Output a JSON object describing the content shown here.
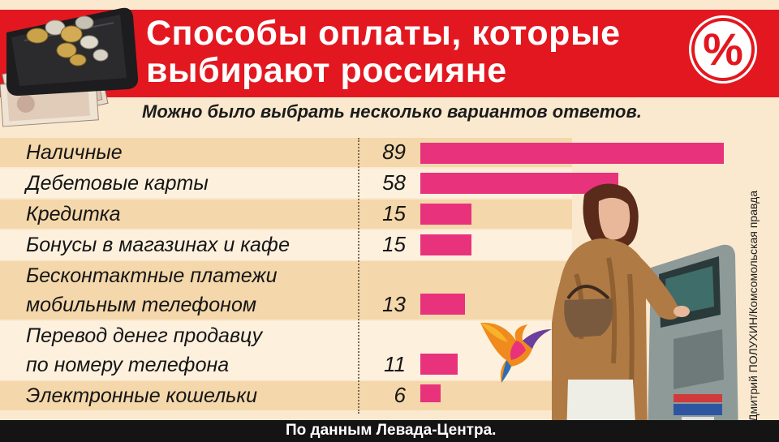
{
  "header": {
    "title_line1": "Способы оплаты, которые",
    "title_line2": "выбирают россияне",
    "badge_symbol": "%",
    "accent_color": "#e3171f"
  },
  "subtitle": "Можно было выбрать несколько вариантов ответов.",
  "chart_data": {
    "type": "bar",
    "orientation": "horizontal",
    "title": "Способы оплаты, которые выбирают россияне",
    "subtitle": "Можно было выбрать несколько вариантов ответов.",
    "bar_color": "#e8337c",
    "grid": false,
    "xlim": [
      0,
      89
    ],
    "rows": [
      {
        "lines": [
          "Наличные"
        ],
        "value": 89,
        "value_label": "89"
      },
      {
        "lines": [
          "Дебетовые карты"
        ],
        "value": 58,
        "value_label": "58"
      },
      {
        "lines": [
          "Кредитка"
        ],
        "value": 15,
        "value_label": "15"
      },
      {
        "lines": [
          "Бонусы в магазинах и кафе"
        ],
        "value": 15,
        "value_label": "15"
      },
      {
        "lines": [
          "Бесконтактные платежи",
          "мобильным телефоном"
        ],
        "value": 13,
        "value_label": "13"
      },
      {
        "lines": [
          "Перевод денег продавцу",
          "по номеру телефона"
        ],
        "value": 11,
        "value_label": "11"
      },
      {
        "lines": [
          "Электронные кошельки"
        ],
        "value": 6,
        "value_label": "6"
      }
    ]
  },
  "photo_credit": "Дмитрий ПОЛУХИН/Комсомольская правда",
  "source": "По данным Левада-Центра.",
  "icons": {
    "wallet": "wallet-with-coins-icon",
    "bird": "bird-logo-icon",
    "photo": "woman-at-atm-photo"
  }
}
